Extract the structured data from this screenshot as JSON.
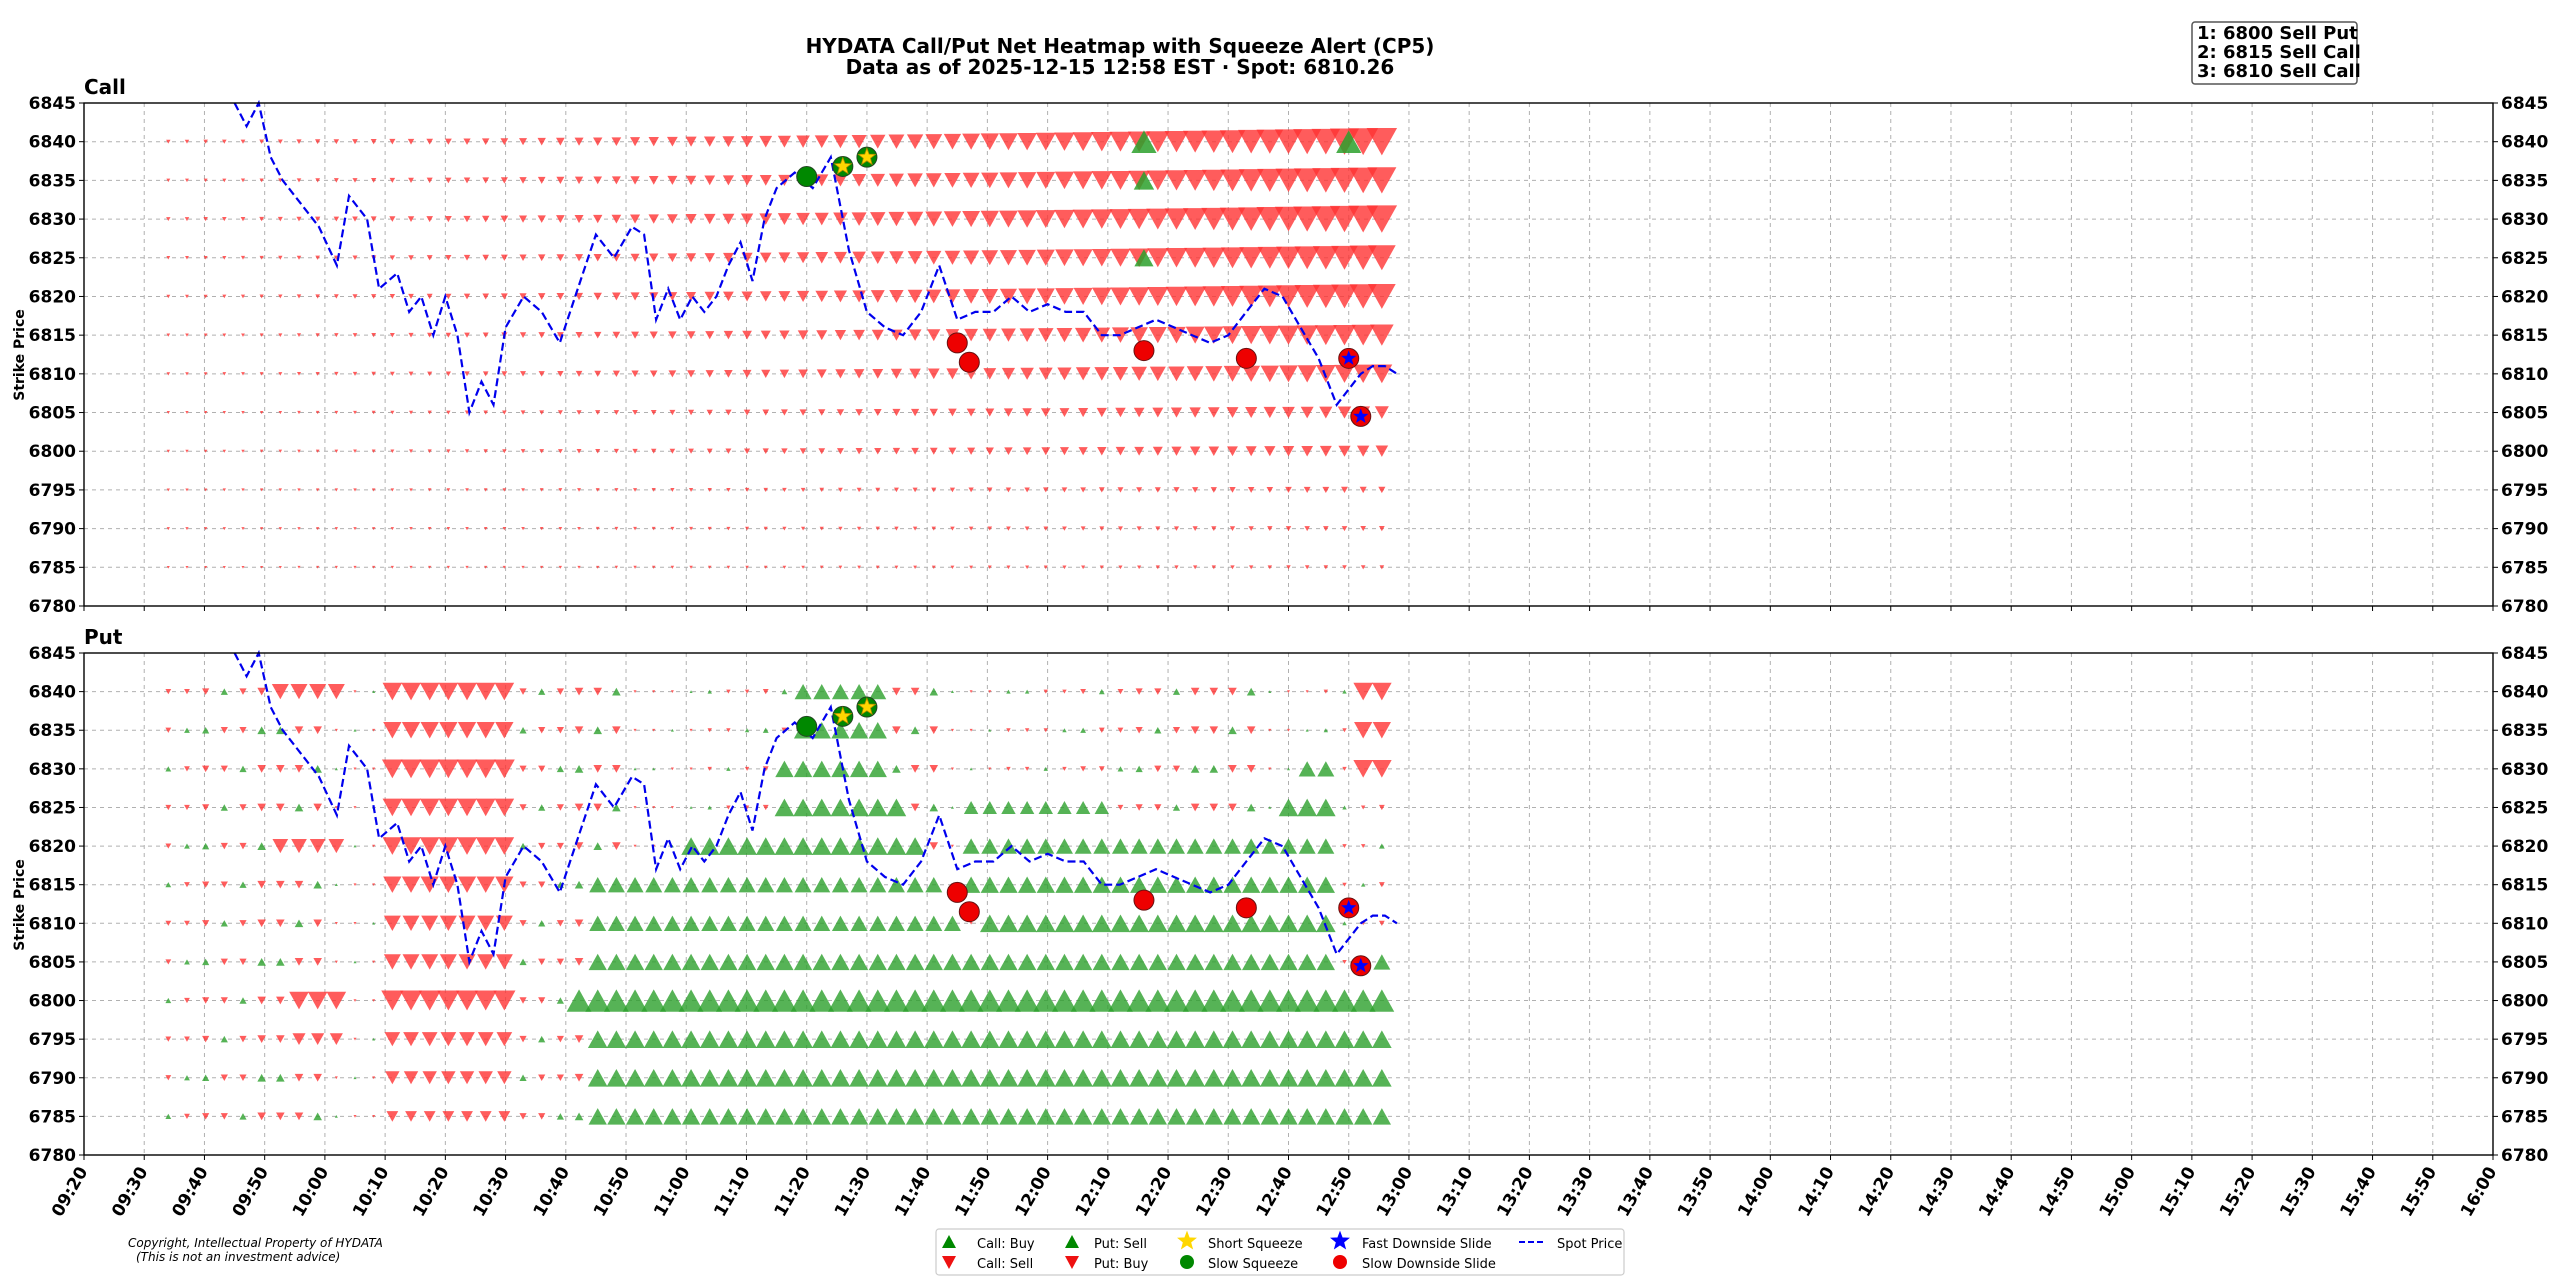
{
  "header": {
    "title": "HYDATA Call/Put Net Heatmap with Squeeze Alert (CP5)",
    "subtitle": "Data as of 2025-12-15 12:58 EST · Spot: 6810.26"
  },
  "top_levels": [
    "1: 6800 Sell Put",
    "2: 6815 Sell Call",
    "3: 6810 Sell Call"
  ],
  "copyright": [
    "Copyright, Intellectual Property of HYDATA",
    "(This is not an investment advice)"
  ],
  "legend": {
    "call_buy": "Call: Buy",
    "call_sell": "Call: Sell",
    "put_sell": "Put: Sell",
    "put_buy": "Put: Buy",
    "short_squeeze": "Short Squeeze",
    "slow_squeeze": "Slow Squeeze",
    "fast_slide": "Fast Downside Slide",
    "slow_slide": "Slow Downside Slide",
    "spot": "Spot Price"
  },
  "colors": {
    "buy_green": "#2ca02c",
    "sell_red": "#ff3333",
    "spot_blue": "#0000ee",
    "squeeze_yellow": "#ffd700",
    "slow_squeeze_green": "#008800",
    "slide_red": "#ee0000",
    "fast_slide_blue": "#0000ff",
    "grid": "#b0b0b0"
  },
  "chart_data": [
    {
      "type": "heatmap",
      "title": "Call",
      "ylabel": "Strike Price",
      "ylim": [
        6780,
        6845
      ],
      "yticks": [
        "6845",
        "6840",
        "6835",
        "6830",
        "6825",
        "6820",
        "6815",
        "6810",
        "6805",
        "6800",
        "6795",
        "6790",
        "6785",
        "6780"
      ],
      "xlim": [
        "09:20",
        "16:00"
      ],
      "xticks": [
        "09:20",
        "09:30",
        "09:40",
        "09:50",
        "10:00",
        "10:10",
        "10:20",
        "10:30",
        "10:40",
        "10:50",
        "11:00",
        "11:10",
        "11:20",
        "11:30",
        "11:40",
        "11:50",
        "12:00",
        "12:10",
        "12:20",
        "12:30",
        "12:40",
        "12:50",
        "13:00",
        "13:10",
        "13:20",
        "13:30",
        "13:40",
        "13:50",
        "14:00",
        "14:10",
        "14:20",
        "14:30",
        "14:40",
        "14:50",
        "15:00",
        "15:10",
        "15:20",
        "15:30",
        "15:40",
        "15:50",
        "16:00"
      ],
      "data_time_range": [
        "09:34",
        "12:58"
      ],
      "flow_rows": [
        {
          "strike": 6840,
          "side": "sell",
          "start": "09:34",
          "end": "12:58",
          "level_start": 0.05,
          "level_end": 1.0
        },
        {
          "strike": 6835,
          "side": "sell",
          "start": "09:34",
          "end": "12:58",
          "level_start": 0.03,
          "level_end": 0.95
        },
        {
          "strike": 6830,
          "side": "sell",
          "start": "09:34",
          "end": "12:58",
          "level_start": 0.05,
          "level_end": 1.0
        },
        {
          "strike": 6825,
          "side": "sell",
          "start": "09:34",
          "end": "12:58",
          "level_start": 0.03,
          "level_end": 0.9
        },
        {
          "strike": 6820,
          "side": "sell",
          "start": "09:34",
          "end": "12:58",
          "level_start": 0.03,
          "level_end": 0.9
        },
        {
          "strike": 6815,
          "side": "sell",
          "start": "09:34",
          "end": "12:58",
          "level_start": 0.02,
          "level_end": 0.75
        },
        {
          "strike": 6810,
          "side": "sell",
          "start": "09:34",
          "end": "12:58",
          "level_start": 0.02,
          "level_end": 0.65
        },
        {
          "strike": 6805,
          "side": "sell",
          "start": "09:34",
          "end": "12:58",
          "level_start": 0.01,
          "level_end": 0.4
        },
        {
          "strike": 6800,
          "side": "sell",
          "start": "09:34",
          "end": "12:58",
          "level_start": 0.01,
          "level_end": 0.35
        },
        {
          "strike": 6795,
          "side": "sell",
          "start": "09:34",
          "end": "12:58",
          "level_start": 0.01,
          "level_end": 0.15
        },
        {
          "strike": 6790,
          "side": "sell",
          "start": "09:34",
          "end": "12:58",
          "level_start": 0.01,
          "level_end": 0.1
        },
        {
          "strike": 6785,
          "side": "sell",
          "start": "09:34",
          "end": "12:58",
          "level_start": 0.0,
          "level_end": 0.06
        }
      ],
      "flow_blocks": [
        {
          "strike": 6840,
          "side": "buy",
          "time": "12:16",
          "level": 0.8
        },
        {
          "strike": 6835,
          "side": "buy",
          "time": "12:16",
          "level": 0.6
        },
        {
          "strike": 6825,
          "side": "buy",
          "time": "12:16",
          "level": 0.55
        },
        {
          "strike": 6840,
          "side": "buy",
          "time": "12:50",
          "level": 0.8
        }
      ]
    },
    {
      "type": "heatmap",
      "title": "Put",
      "ylabel": "Strike Price",
      "ylim": [
        6780,
        6845
      ],
      "yticks": [
        "6845",
        "6840",
        "6835",
        "6830",
        "6825",
        "6820",
        "6815",
        "6810",
        "6805",
        "6800",
        "6795",
        "6790",
        "6785",
        "6780"
      ],
      "xlim": [
        "09:20",
        "16:00"
      ],
      "xticks": [
        "09:20",
        "09:30",
        "09:40",
        "09:50",
        "10:00",
        "10:10",
        "10:20",
        "10:30",
        "10:40",
        "10:50",
        "11:00",
        "11:10",
        "11:20",
        "11:30",
        "11:40",
        "11:50",
        "12:00",
        "12:10",
        "12:20",
        "12:30",
        "12:40",
        "12:50",
        "13:00",
        "13:10",
        "13:20",
        "13:30",
        "13:40",
        "13:50",
        "14:00",
        "14:10",
        "14:20",
        "14:30",
        "14:40",
        "14:50",
        "15:00",
        "15:10",
        "15:20",
        "15:30",
        "15:40",
        "15:50",
        "16:00"
      ],
      "data_time_range": [
        "09:34",
        "12:58"
      ],
      "flow_blocks": [
        {
          "strike": 6840,
          "side": "buy",
          "start": "09:50",
          "end": "10:05",
          "level": 0.5
        },
        {
          "strike": 6840,
          "side": "buy",
          "start": "10:10",
          "end": "10:31",
          "level": 0.6
        },
        {
          "strike": 6840,
          "side": "sell",
          "start": "11:18",
          "end": "11:32",
          "level": 0.5
        },
        {
          "strike": 6840,
          "side": "buy",
          "start": "12:50",
          "end": "12:58",
          "level": 0.6
        },
        {
          "strike": 6835,
          "side": "buy",
          "start": "10:10",
          "end": "10:31",
          "level": 0.55
        },
        {
          "strike": 6835,
          "side": "sell",
          "start": "11:18",
          "end": "11:32",
          "level": 0.55
        },
        {
          "strike": 6835,
          "side": "buy",
          "start": "12:50",
          "end": "12:58",
          "level": 0.55
        },
        {
          "strike": 6830,
          "side": "buy",
          "start": "10:10",
          "end": "10:31",
          "level": 0.65
        },
        {
          "strike": 6830,
          "side": "sell",
          "start": "11:16",
          "end": "11:34",
          "level": 0.55
        },
        {
          "strike": 6830,
          "side": "sell",
          "start": "12:43",
          "end": "12:49",
          "level": 0.5
        },
        {
          "strike": 6830,
          "side": "buy",
          "start": "12:50",
          "end": "12:58",
          "level": 0.6
        },
        {
          "strike": 6825,
          "side": "buy",
          "start": "10:10",
          "end": "10:31",
          "level": 0.6
        },
        {
          "strike": 6825,
          "side": "sell",
          "start": "11:16",
          "end": "11:36",
          "level": 0.6
        },
        {
          "strike": 6825,
          "side": "sell",
          "start": "11:46",
          "end": "12:12",
          "level": 0.4
        },
        {
          "strike": 6825,
          "side": "sell",
          "start": "12:40",
          "end": "12:49",
          "level": 0.6
        },
        {
          "strike": 6820,
          "side": "buy",
          "start": "09:50",
          "end": "10:05",
          "level": 0.45
        },
        {
          "strike": 6820,
          "side": "buy",
          "start": "10:10",
          "end": "10:31",
          "level": 0.6
        },
        {
          "strike": 6820,
          "side": "sell",
          "start": "10:58",
          "end": "11:40",
          "level": 0.6
        },
        {
          "strike": 6820,
          "side": "sell",
          "start": "11:46",
          "end": "12:49",
          "level": 0.5
        },
        {
          "strike": 6815,
          "side": "buy",
          "start": "10:10",
          "end": "10:31",
          "level": 0.55
        },
        {
          "strike": 6815,
          "side": "sell",
          "start": "10:45",
          "end": "11:42",
          "level": 0.5
        },
        {
          "strike": 6815,
          "side": "sell",
          "start": "11:46",
          "end": "12:49",
          "level": 0.55
        },
        {
          "strike": 6810,
          "side": "buy",
          "start": "10:10",
          "end": "10:31",
          "level": 0.5
        },
        {
          "strike": 6810,
          "side": "sell",
          "start": "10:45",
          "end": "11:45",
          "level": 0.5
        },
        {
          "strike": 6810,
          "side": "sell",
          "start": "11:50",
          "end": "12:49",
          "level": 0.6
        },
        {
          "strike": 6805,
          "side": "buy",
          "start": "10:10",
          "end": "10:31",
          "level": 0.5
        },
        {
          "strike": 6805,
          "side": "sell",
          "start": "10:45",
          "end": "12:49",
          "level": 0.55
        },
        {
          "strike": 6805,
          "side": "sell",
          "start": "12:53",
          "end": "12:58",
          "level": 0.5
        },
        {
          "strike": 6800,
          "side": "buy",
          "start": "09:53",
          "end": "10:05",
          "level": 0.6
        },
        {
          "strike": 6800,
          "side": "buy",
          "start": "10:10",
          "end": "10:31",
          "level": 0.7
        },
        {
          "strike": 6800,
          "side": "sell",
          "start": "10:42",
          "end": "12:58",
          "level": 0.8
        },
        {
          "strike": 6795,
          "side": "buy",
          "start": "09:53",
          "end": "10:05",
          "level": 0.35
        },
        {
          "strike": 6795,
          "side": "buy",
          "start": "10:10",
          "end": "10:31",
          "level": 0.45
        },
        {
          "strike": 6795,
          "side": "sell",
          "start": "10:45",
          "end": "12:58",
          "level": 0.6
        },
        {
          "strike": 6790,
          "side": "buy",
          "start": "10:10",
          "end": "10:31",
          "level": 0.4
        },
        {
          "strike": 6790,
          "side": "sell",
          "start": "10:45",
          "end": "12:58",
          "level": 0.6
        },
        {
          "strike": 6785,
          "side": "buy",
          "start": "10:10",
          "end": "10:31",
          "level": 0.3
        },
        {
          "strike": 6785,
          "side": "sell",
          "start": "10:45",
          "end": "12:58",
          "level": 0.55
        }
      ]
    }
  ],
  "spot_series": {
    "x": [
      "09:45",
      "09:47",
      "09:49",
      "09:51",
      "09:53",
      "09:56",
      "09:59",
      "10:02",
      "10:04",
      "10:07",
      "10:09",
      "10:12",
      "10:14",
      "10:16",
      "10:18",
      "10:20",
      "10:22",
      "10:24",
      "10:26",
      "10:28",
      "10:30",
      "10:33",
      "10:36",
      "10:39",
      "10:42",
      "10:45",
      "10:48",
      "10:51",
      "10:53",
      "10:55",
      "10:57",
      "10:59",
      "11:01",
      "11:03",
      "11:05",
      "11:07",
      "11:09",
      "11:11",
      "11:13",
      "11:15",
      "11:18",
      "11:21",
      "11:24",
      "11:27",
      "11:30",
      "11:33",
      "11:36",
      "11:39",
      "11:42",
      "11:45",
      "11:48",
      "11:51",
      "11:54",
      "11:57",
      "12:00",
      "12:03",
      "12:06",
      "12:09",
      "12:12",
      "12:15",
      "12:18",
      "12:21",
      "12:24",
      "12:27",
      "12:30",
      "12:33",
      "12:36",
      "12:39",
      "12:42",
      "12:45",
      "12:48",
      "12:50",
      "12:52",
      "12:54",
      "12:56",
      "12:58"
    ],
    "y": [
      6845,
      6842,
      6845,
      6838,
      6835,
      6832,
      6829,
      6824,
      6833,
      6830,
      6821,
      6823,
      6818,
      6820,
      6815,
      6820,
      6815,
      6805,
      6809,
      6806,
      6816,
      6820,
      6818,
      6814,
      6821,
      6828,
      6825,
      6829,
      6828,
      6817,
      6821,
      6817,
      6820,
      6818,
      6820,
      6824,
      6827,
      6822,
      6830,
      6834,
      6836,
      6834,
      6838,
      6826,
      6818,
      6816,
      6815,
      6818,
      6824,
      6817,
      6818,
      6818,
      6820,
      6818,
      6819,
      6818,
      6818,
      6815,
      6815,
      6816,
      6817,
      6816,
      6815,
      6814,
      6815,
      6818,
      6821,
      6820,
      6816,
      6812,
      6806,
      6808,
      6810,
      6811,
      6811,
      6810
    ]
  },
  "markers": [
    {
      "type": "slow_squeeze",
      "time": "11:20",
      "price": 6835.5
    },
    {
      "type": "short_squeeze",
      "time": "11:26",
      "price": 6836.8
    },
    {
      "type": "short_squeeze",
      "time": "11:30",
      "price": 6838
    },
    {
      "type": "slow_slide",
      "time": "11:45",
      "price": 6814
    },
    {
      "type": "slow_slide",
      "time": "11:47",
      "price": 6811.5
    },
    {
      "type": "slow_slide",
      "time": "12:16",
      "price": 6813
    },
    {
      "type": "slow_slide",
      "time": "12:33",
      "price": 6812
    },
    {
      "type": "slow_slide",
      "time": "12:50",
      "price": 6812
    },
    {
      "type": "fast_slide",
      "time": "12:50",
      "price": 6812
    },
    {
      "type": "slow_slide",
      "time": "12:52",
      "price": 6804.5
    },
    {
      "type": "fast_slide",
      "time": "12:52",
      "price": 6804.5
    }
  ]
}
